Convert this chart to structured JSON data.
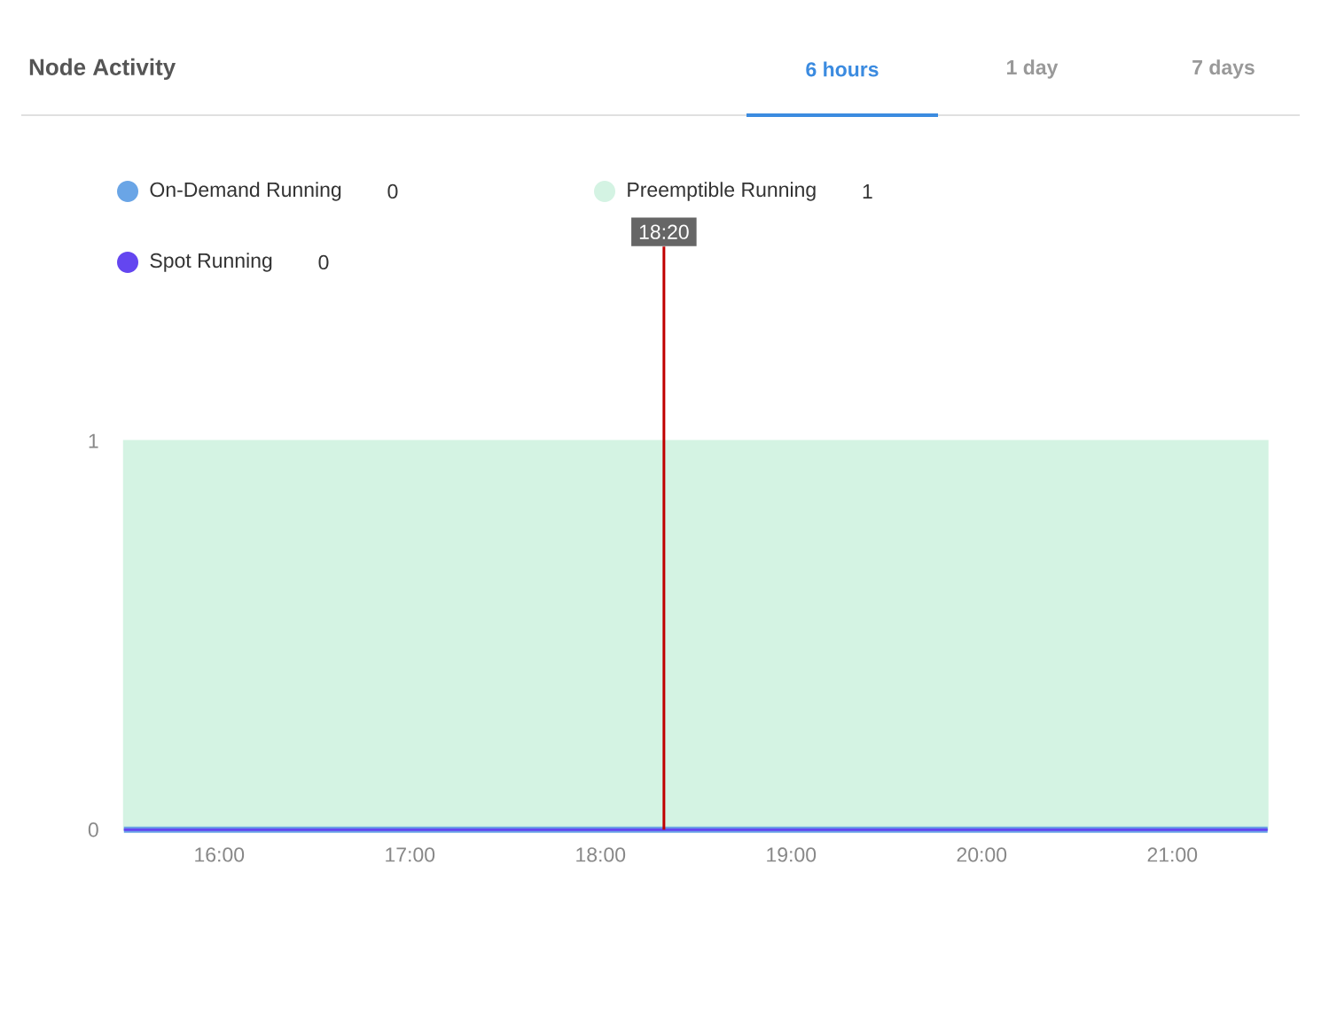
{
  "chart_data": {
    "type": "area",
    "title": "Node Activity",
    "annotations": [
      "0",
      "1",
      "0",
      "6 hours",
      "1 day",
      "7 days"
    ],
    "x": [
      15.5,
      21.5
    ],
    "xlim": [
      15.5,
      21.5
    ],
    "xticks": [
      {
        "value": 16,
        "label": "16:00"
      },
      {
        "value": 17,
        "label": "17:00"
      },
      {
        "value": 18,
        "label": "18:00"
      },
      {
        "value": 19,
        "label": "19:00"
      },
      {
        "value": 20,
        "label": "20:00"
      },
      {
        "value": 21,
        "label": "21:00"
      }
    ],
    "ylim": [
      0,
      1.5
    ],
    "yticks": [
      0,
      1
    ],
    "series": [
      {
        "name": "On-Demand Running",
        "color": "#6aa5e6",
        "type": "line",
        "values": [
          0,
          0
        ]
      },
      {
        "name": "Preemptible Running",
        "color": "#d4f3e3",
        "values": [
          1,
          1
        ]
      },
      {
        "name": "Spot Running",
        "color": "#6446f0",
        "type": "line",
        "values": [
          0,
          0
        ]
      }
    ],
    "ref_lines": [
      {
        "axis": "x",
        "value": 18.333,
        "label": "18:20",
        "color": "#c00000"
      }
    ],
    "legend": "top left"
  }
}
